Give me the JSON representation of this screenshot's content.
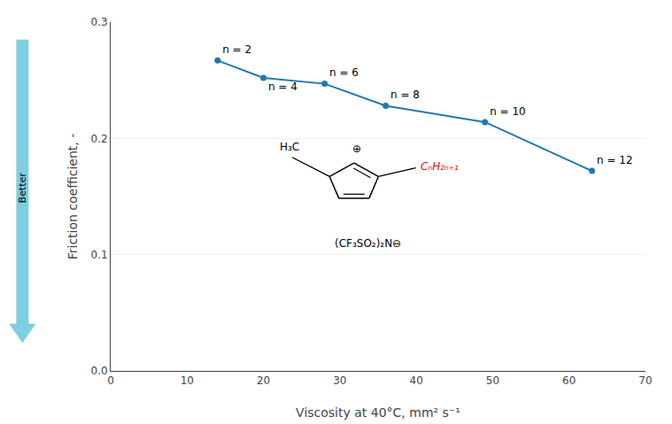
{
  "chart_data": {
    "type": "line",
    "x": [
      14,
      20,
      28,
      36,
      49,
      63
    ],
    "values": [
      0.267,
      0.252,
      0.247,
      0.228,
      0.214,
      0.172
    ],
    "labels": [
      "n = 2",
      "n = 4",
      "n = 6",
      "n = 8",
      "n = 10",
      "n = 12"
    ],
    "marker": "circle",
    "xlabel": "Viscosity at 40°C, mm² s⁻¹",
    "ylabel": "Friction coefficient, -",
    "xlim": [
      0,
      70
    ],
    "ylim": [
      0.0,
      0.3
    ],
    "xticks": [
      0,
      10,
      20,
      30,
      40,
      50,
      60,
      70
    ],
    "yticks": [
      {
        "value": 0.0,
        "label": "0.0"
      },
      0.1,
      0.2,
      0.3
    ],
    "grid": "y",
    "annotations": [
      {
        "text": "H₃C"
      },
      {
        "text": "⊕"
      },
      {
        "text": "CₙH₂ₙ₊₁",
        "color": "#ff0000"
      },
      {
        "text": "(CF₃SO₂)₂N⊖"
      },
      {
        "text": "Better",
        "color": "#7ecfe0"
      }
    ]
  }
}
